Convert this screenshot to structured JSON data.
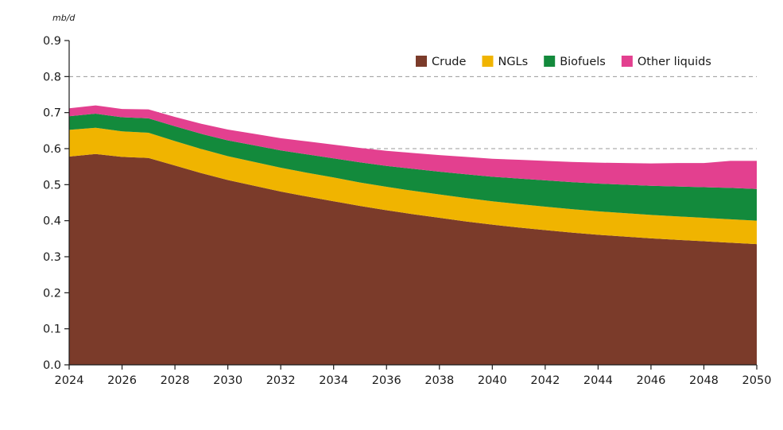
{
  "chart_data": {
    "type": "area",
    "stacked": true,
    "unit_label": "mb/d",
    "title": "",
    "xlabel": "",
    "ylabel": "",
    "x": [
      2024,
      2025,
      2026,
      2027,
      2028,
      2029,
      2030,
      2031,
      2032,
      2033,
      2034,
      2035,
      2036,
      2037,
      2038,
      2039,
      2040,
      2041,
      2042,
      2043,
      2044,
      2045,
      2046,
      2047,
      2048,
      2049,
      2050
    ],
    "xlim": [
      2024,
      2050
    ],
    "ylim": [
      0,
      0.9
    ],
    "x_ticks": [
      2024,
      2026,
      2028,
      2030,
      2032,
      2034,
      2036,
      2038,
      2040,
      2042,
      2044,
      2046,
      2048,
      2050
    ],
    "y_ticks": [
      "0.0",
      "0.1",
      "0.2",
      "0.3",
      "0.4",
      "0.5",
      "0.6",
      "0.7",
      "0.8",
      "0.9"
    ],
    "gridlines_y": [
      0.6,
      0.7,
      0.8
    ],
    "legend_position": "top-right",
    "series": [
      {
        "name": "Crude",
        "color": "#7b3b2a",
        "values": [
          0.578,
          0.585,
          0.577,
          0.574,
          0.553,
          0.532,
          0.513,
          0.497,
          0.481,
          0.467,
          0.454,
          0.441,
          0.429,
          0.418,
          0.408,
          0.398,
          0.389,
          0.381,
          0.374,
          0.367,
          0.361,
          0.356,
          0.351,
          0.347,
          0.343,
          0.339,
          0.335
        ]
      },
      {
        "name": "NGLs",
        "color": "#f0b400",
        "values": [
          0.074,
          0.073,
          0.071,
          0.07,
          0.068,
          0.067,
          0.066,
          0.066,
          0.066,
          0.066,
          0.066,
          0.065,
          0.065,
          0.065,
          0.065,
          0.065,
          0.065,
          0.065,
          0.065,
          0.065,
          0.065,
          0.065,
          0.065,
          0.065,
          0.065,
          0.065,
          0.065
        ]
      },
      {
        "name": "Biofuels",
        "color": "#138a3c",
        "values": [
          0.038,
          0.039,
          0.039,
          0.04,
          0.041,
          0.042,
          0.044,
          0.046,
          0.048,
          0.051,
          0.053,
          0.056,
          0.058,
          0.061,
          0.063,
          0.066,
          0.068,
          0.071,
          0.073,
          0.075,
          0.077,
          0.079,
          0.081,
          0.083,
          0.085,
          0.087,
          0.088
        ]
      },
      {
        "name": "Other liquids",
        "color": "#e3408f",
        "values": [
          0.022,
          0.023,
          0.023,
          0.025,
          0.026,
          0.028,
          0.03,
          0.032,
          0.034,
          0.036,
          0.038,
          0.04,
          0.042,
          0.044,
          0.046,
          0.048,
          0.05,
          0.052,
          0.054,
          0.056,
          0.058,
          0.06,
          0.062,
          0.065,
          0.067,
          0.075,
          0.078
        ]
      }
    ]
  }
}
